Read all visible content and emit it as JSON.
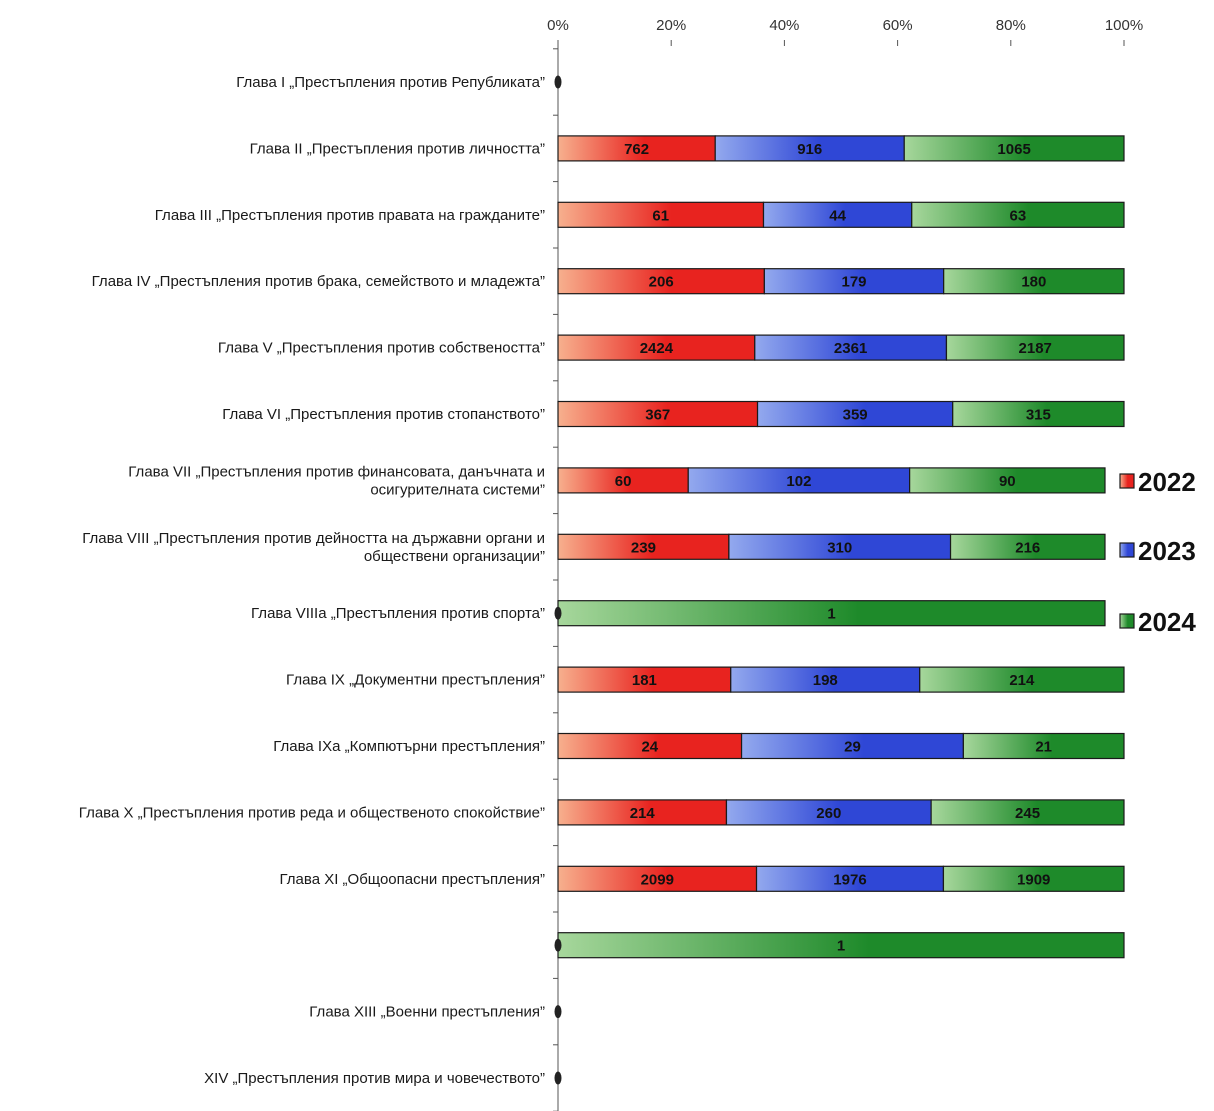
{
  "chart_data": {
    "type": "bar",
    "orientation": "horizontal",
    "stacked": "percent",
    "x_ticks": [
      "0%",
      "20%",
      "40%",
      "60%",
      "80%",
      "100%"
    ],
    "xlim": [
      0,
      100
    ],
    "legend_position": "right",
    "categories": [
      "Глава I „Престъпления против Републиката”",
      "Глава II „Престъпления против личността”",
      "Глава III „Престъпления против правата на гражданите”",
      "Глава IV „Престъпления против брака, семейството и младежта”",
      "Глава V „Престъпления против собствеността”",
      "Глава VI „Престъпления против стопанството”",
      "Глава VII „Престъпления против финансовата, данъчната и осигурителната системи”",
      "Глава VIII „Престъпления против дейността на държавни органи и обществени организации”",
      "Глава VIIIa „Престъпления против спорта”",
      "Глава IX „Документни престъпления”",
      "Глава IXa „Компютърни престъпления”",
      "Глава X „Престъпления против реда и общественото спокойствие”",
      "Глава XI „Общоопасни престъпления”",
      "",
      "Глава XIII „Военни престъпления”",
      "XIV „Престъпления против мира и човечеството”"
    ],
    "series": [
      {
        "name": "2022",
        "color": "#e8231f",
        "light": "#f7b08e",
        "values": [
          0,
          762,
          61,
          206,
          2424,
          367,
          60,
          239,
          0,
          181,
          24,
          214,
          2099,
          0,
          0,
          0
        ]
      },
      {
        "name": "2023",
        "color": "#2f47d6",
        "light": "#93a9ee",
        "values": [
          0,
          916,
          44,
          179,
          2361,
          359,
          102,
          310,
          0,
          198,
          29,
          260,
          1976,
          0,
          0,
          0
        ]
      },
      {
        "name": "2024",
        "color": "#1e8a2a",
        "light": "#a7d79c",
        "values": [
          0,
          1065,
          63,
          180,
          2187,
          315,
          90,
          216,
          1,
          214,
          21,
          245,
          1909,
          1,
          0,
          0
        ]
      }
    ]
  }
}
